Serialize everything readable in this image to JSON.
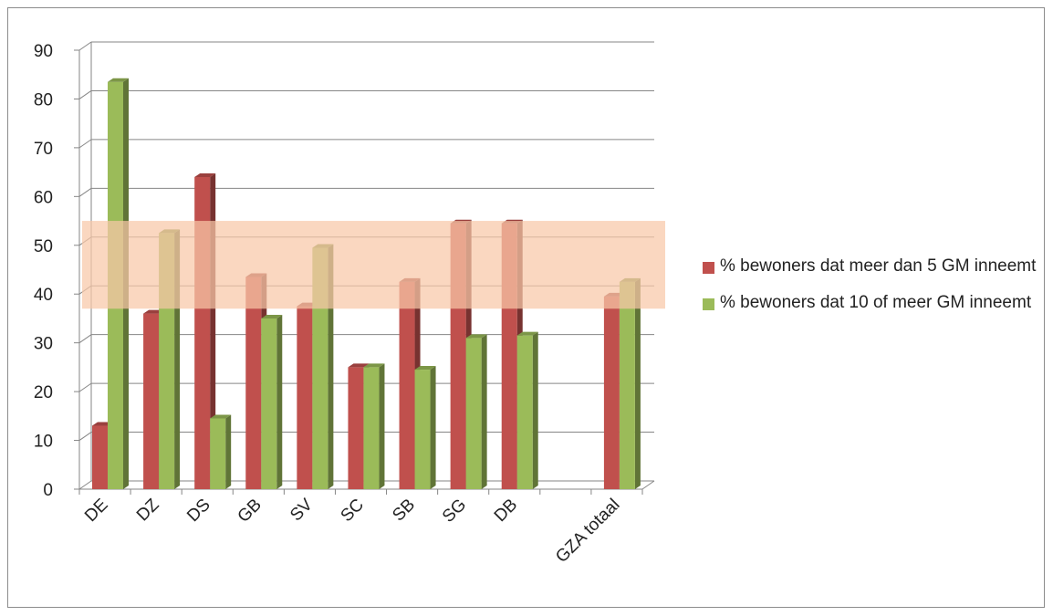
{
  "chart_data": {
    "type": "bar",
    "categories": [
      "DE",
      "DZ",
      "DS",
      "GB",
      "SV",
      "SC",
      "SB",
      "SG",
      "DB",
      "",
      "GZA totaal"
    ],
    "series": [
      {
        "name": "% bewoners dat meer dan 5 GM inneemt",
        "color": "#c0504d",
        "values": [
          13,
          36,
          64,
          43.5,
          37.5,
          25,
          42.5,
          54.5,
          54.5,
          null,
          39.5
        ]
      },
      {
        "name": "% bewoners dat 10 of meer GM inneemt",
        "color": "#9bbb59",
        "values": [
          83.5,
          52.5,
          14.5,
          35,
          49.5,
          25,
          24.5,
          31,
          31.5,
          null,
          42.5
        ]
      }
    ],
    "y_ticks": [
      "0",
      "10",
      "20",
      "30",
      "40",
      "50",
      "60",
      "70",
      "80",
      "90"
    ],
    "ylim": [
      0,
      90
    ],
    "grid": true,
    "highlight_band": {
      "from": 37,
      "to": 55,
      "color": "#f8c8a8"
    },
    "legend_position": "right"
  }
}
